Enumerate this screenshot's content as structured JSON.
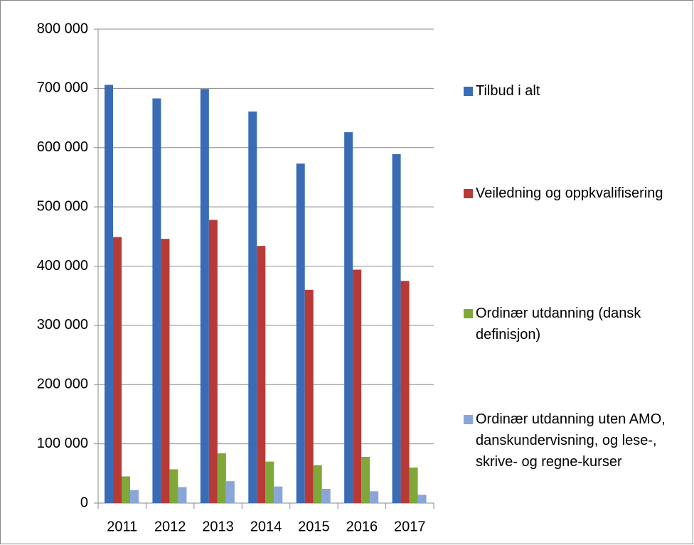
{
  "chart_data": {
    "type": "bar",
    "categories": [
      "2011",
      "2012",
      "2013",
      "2014",
      "2015",
      "2016",
      "2017"
    ],
    "series": [
      {
        "name": "Tilbud i alt",
        "color": "#3a6cb5",
        "values": [
          706000,
          683000,
          699000,
          661000,
          573000,
          626000,
          589000
        ]
      },
      {
        "name": "Veiledning og oppkvalifisering",
        "color": "#b83a36",
        "values": [
          449000,
          446000,
          478000,
          434000,
          360000,
          394000,
          375000
        ]
      },
      {
        "name": "Ordinær utdanning (dansk definisjon)",
        "color": "#7fa83a",
        "values": [
          45000,
          57000,
          84000,
          70000,
          64000,
          78000,
          60000
        ]
      },
      {
        "name": "Ordinær utdanning uten AMO, danskundervisning, og lese-, skrive- og regne-kurser",
        "color": "#8aa6d8",
        "values": [
          22000,
          27000,
          37000,
          28000,
          24000,
          20000,
          14000
        ]
      }
    ],
    "ylim": [
      0,
      800000
    ],
    "yticks": [
      {
        "value": 0,
        "label": "0"
      },
      {
        "value": 100000,
        "label": "100 000"
      },
      {
        "value": 200000,
        "label": "200 000"
      },
      {
        "value": 300000,
        "label": "300 000"
      },
      {
        "value": 400000,
        "label": "400 000"
      },
      {
        "value": 500000,
        "label": "500 000"
      },
      {
        "value": 600000,
        "label": "600 000"
      },
      {
        "value": 700000,
        "label": "700 000"
      },
      {
        "value": 800000,
        "label": "800 000"
      }
    ],
    "grid": true
  }
}
